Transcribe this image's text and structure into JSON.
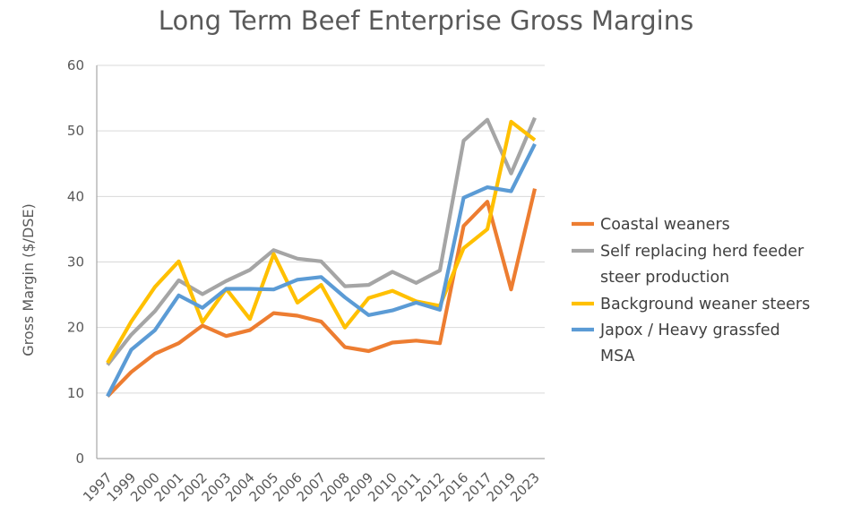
{
  "chart_data": {
    "type": "line",
    "title": "Long Term Beef Enterprise Gross Margins",
    "xlabel": "",
    "ylabel": "Gross Margin ($/DSE)",
    "ylim": [
      0,
      60
    ],
    "yticks": [
      0,
      10,
      20,
      30,
      40,
      50,
      60
    ],
    "grid": true,
    "legend_position": "right",
    "categories": [
      "1997",
      "1999",
      "2000",
      "2001",
      "2002",
      "2003",
      "2004",
      "2005",
      "2006",
      "2007",
      "2008",
      "2009",
      "2010",
      "2011",
      "2012",
      "2016",
      "2017",
      "2019",
      "2023"
    ],
    "series": [
      {
        "name": "Coastal weaners",
        "legend_lines": [
          "Coastal weaners"
        ],
        "color": "#ED7D31",
        "values": [
          9.5,
          13.2,
          16.0,
          17.6,
          20.3,
          18.7,
          19.6,
          22.2,
          21.8,
          20.9,
          17.0,
          16.4,
          17.7,
          18.0,
          17.6,
          35.5,
          39.2,
          25.8,
          41.2
        ]
      },
      {
        "name": "Self replacing herd feeder steer production",
        "legend_lines": [
          "Self replacing herd feeder",
          "steer production"
        ],
        "color": "#A5A5A5",
        "values": [
          14.3,
          18.9,
          22.5,
          27.2,
          25.1,
          27.1,
          28.8,
          31.8,
          30.5,
          30.1,
          26.3,
          26.5,
          28.5,
          26.8,
          28.7,
          48.5,
          51.7,
          43.5,
          52.0
        ]
      },
      {
        "name": "Background weaner steers",
        "legend_lines": [
          "Background weaner steers"
        ],
        "color": "#FFC000",
        "values": [
          14.6,
          20.9,
          26.2,
          30.1,
          20.8,
          25.9,
          21.3,
          31.2,
          23.8,
          26.5,
          20.0,
          24.5,
          25.6,
          24.0,
          23.3,
          32.1,
          35.0,
          51.4,
          48.6
        ]
      },
      {
        "name": "Japox / Heavy grassfed MSA",
        "legend_lines": [
          "Japox / Heavy grassfed",
          "MSA"
        ],
        "color": "#5B9BD5",
        "values": [
          9.5,
          16.6,
          19.6,
          24.9,
          23.0,
          25.9,
          25.9,
          25.8,
          27.3,
          27.7,
          24.6,
          21.9,
          22.6,
          23.8,
          22.7,
          39.8,
          41.4,
          40.8,
          48.0
        ]
      }
    ]
  }
}
